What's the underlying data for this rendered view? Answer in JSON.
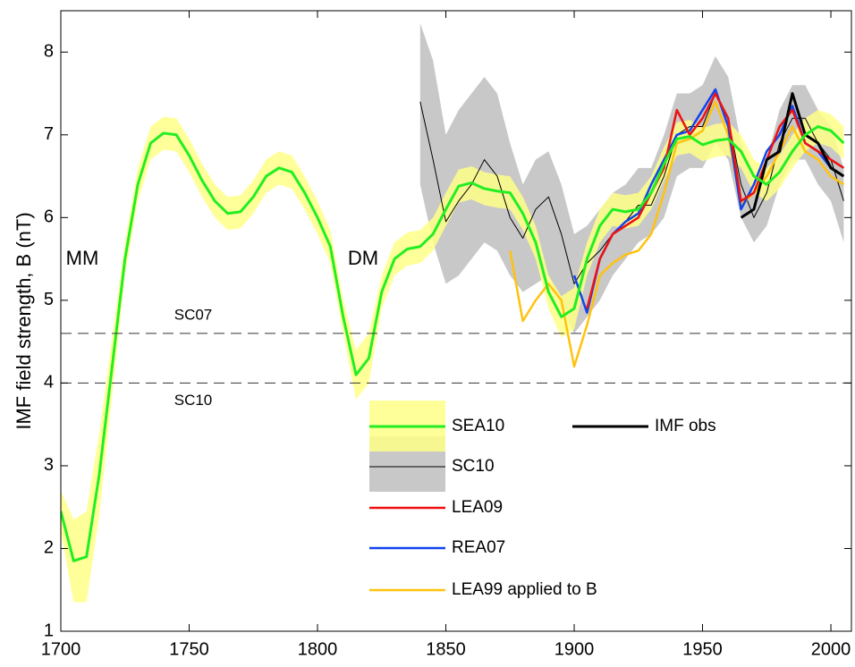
{
  "chart_data": {
    "type": "line",
    "ylabel": "IMF field strength, B (nT)",
    "xlim": [
      1700,
      2008
    ],
    "ylim": [
      1,
      8.5
    ],
    "xticks": [
      1700,
      1750,
      1800,
      1850,
      1900,
      1950,
      2000
    ],
    "yticks": [
      1,
      2,
      3,
      4,
      5,
      6,
      7,
      8
    ],
    "annotations": [
      "MM",
      "DM"
    ],
    "reference_lines": [
      {
        "value": 4.6,
        "label": "SC07"
      },
      {
        "value": 4.0,
        "label": "SC10"
      }
    ],
    "series": [
      {
        "name": "SEA10",
        "color": "#22ee22",
        "band_color": "#ffff88",
        "x": [
          1700,
          1705,
          1710,
          1715,
          1720,
          1725,
          1730,
          1735,
          1740,
          1745,
          1750,
          1755,
          1760,
          1765,
          1770,
          1775,
          1780,
          1785,
          1790,
          1795,
          1800,
          1805,
          1810,
          1815,
          1820,
          1825,
          1830,
          1835,
          1840,
          1845,
          1850,
          1855,
          1860,
          1865,
          1870,
          1875,
          1880,
          1885,
          1890,
          1895,
          1900,
          1905,
          1910,
          1915,
          1920,
          1925,
          1930,
          1935,
          1940,
          1945,
          1950,
          1955,
          1960,
          1965,
          1970,
          1975,
          1980,
          1985,
          1990,
          1995,
          2000,
          2005
        ],
        "values": [
          2.45,
          1.85,
          1.9,
          2.9,
          4.2,
          5.5,
          6.4,
          6.9,
          7.02,
          7.0,
          6.75,
          6.45,
          6.2,
          6.05,
          6.07,
          6.25,
          6.5,
          6.6,
          6.55,
          6.3,
          6.0,
          5.65,
          4.8,
          4.1,
          4.3,
          5.1,
          5.5,
          5.62,
          5.65,
          5.8,
          6.1,
          6.38,
          6.42,
          6.35,
          6.32,
          6.3,
          6.05,
          5.7,
          5.1,
          4.8,
          4.9,
          5.5,
          5.9,
          6.1,
          6.07,
          6.1,
          6.3,
          6.65,
          6.95,
          6.98,
          6.88,
          6.93,
          6.95,
          6.8,
          6.5,
          6.4,
          6.55,
          6.8,
          7.0,
          7.1,
          7.05,
          6.9
        ],
        "lower": [
          2.2,
          1.35,
          1.35,
          2.4,
          3.85,
          5.3,
          6.2,
          6.7,
          6.82,
          6.8,
          6.55,
          6.25,
          6.0,
          5.85,
          5.87,
          6.05,
          6.3,
          6.4,
          6.35,
          6.1,
          5.8,
          5.45,
          4.6,
          3.8,
          4.0,
          4.9,
          5.3,
          5.42,
          5.45,
          5.6,
          5.9,
          6.18,
          6.22,
          6.15,
          6.12,
          6.1,
          5.85,
          5.5,
          4.9,
          4.55,
          4.65,
          5.3,
          5.7,
          5.9,
          5.87,
          5.9,
          6.1,
          6.45,
          6.75,
          6.78,
          6.68,
          6.73,
          6.75,
          6.6,
          6.3,
          6.2,
          6.35,
          6.6,
          6.8,
          6.9,
          6.85,
          6.7
        ],
        "upper": [
          2.7,
          2.35,
          2.45,
          3.4,
          4.55,
          5.7,
          6.6,
          7.1,
          7.22,
          7.2,
          6.95,
          6.65,
          6.4,
          6.25,
          6.27,
          6.45,
          6.7,
          6.8,
          6.75,
          6.5,
          6.2,
          5.85,
          5.0,
          4.4,
          4.6,
          5.3,
          5.7,
          5.82,
          5.85,
          6.0,
          6.3,
          6.58,
          6.62,
          6.55,
          6.52,
          6.5,
          6.25,
          5.9,
          5.3,
          5.05,
          5.15,
          5.7,
          6.1,
          6.3,
          6.27,
          6.3,
          6.5,
          6.85,
          7.15,
          7.18,
          7.08,
          7.13,
          7.15,
          7.0,
          6.7,
          6.6,
          6.75,
          7.0,
          7.2,
          7.3,
          7.25,
          7.1
        ]
      },
      {
        "name": "SC10",
        "color": "#000000",
        "band_color": "#c8c8c8",
        "x": [
          1840,
          1845,
          1850,
          1855,
          1860,
          1865,
          1870,
          1875,
          1880,
          1885,
          1890,
          1895,
          1900,
          1905,
          1910,
          1915,
          1920,
          1925,
          1930,
          1935,
          1940,
          1945,
          1950,
          1955,
          1960,
          1965,
          1970,
          1975,
          1980,
          1985,
          1990,
          1995,
          2000,
          2005
        ],
        "values": [
          7.4,
          6.7,
          5.95,
          6.2,
          6.4,
          6.7,
          6.5,
          6.0,
          5.75,
          6.1,
          6.25,
          5.8,
          5.2,
          5.45,
          5.6,
          5.8,
          5.95,
          6.15,
          6.15,
          6.5,
          7.0,
          7.1,
          7.1,
          7.5,
          7.2,
          6.4,
          6.0,
          6.3,
          6.9,
          7.2,
          7.2,
          6.9,
          6.7,
          6.2
        ],
        "lower": [
          6.4,
          5.7,
          5.2,
          5.3,
          5.5,
          5.7,
          5.6,
          5.3,
          5.1,
          5.2,
          5.3,
          4.9,
          4.6,
          4.8,
          5.0,
          5.3,
          5.5,
          5.7,
          5.8,
          6.0,
          6.5,
          6.6,
          6.6,
          6.9,
          6.7,
          6.0,
          5.7,
          5.9,
          6.4,
          6.7,
          6.7,
          6.4,
          6.2,
          5.7
        ],
        "upper": [
          8.35,
          7.9,
          7.0,
          7.3,
          7.5,
          7.7,
          7.5,
          6.9,
          6.4,
          6.7,
          6.8,
          6.4,
          5.8,
          5.9,
          6.1,
          6.3,
          6.4,
          6.6,
          6.6,
          7.0,
          7.5,
          7.5,
          7.6,
          7.95,
          7.7,
          6.9,
          6.4,
          6.7,
          7.3,
          7.6,
          7.6,
          7.3,
          7.1,
          6.6
        ]
      },
      {
        "name": "LEA09",
        "color": "#ee1111",
        "x": [
          1905,
          1910,
          1915,
          1920,
          1925,
          1930,
          1935,
          1940,
          1945,
          1950,
          1955,
          1960,
          1965,
          1970,
          1975,
          1980,
          1985,
          1990,
          1995,
          2000,
          2005
        ],
        "values": [
          4.9,
          5.5,
          5.8,
          5.9,
          6.0,
          6.3,
          6.6,
          7.3,
          7.0,
          7.2,
          7.5,
          7.2,
          6.2,
          6.3,
          6.7,
          7.1,
          7.3,
          6.9,
          6.8,
          6.7,
          6.6
        ]
      },
      {
        "name": "REA07",
        "color": "#1144ee",
        "x": [
          1900,
          1905,
          1910,
          1915,
          1920,
          1925,
          1930,
          1935,
          1940,
          1945,
          1950,
          1955,
          1960,
          1965,
          1970,
          1975,
          1980,
          1985,
          1990,
          1995,
          2000
        ],
        "values": [
          5.3,
          4.85,
          5.5,
          5.8,
          5.95,
          6.05,
          6.4,
          6.7,
          7.0,
          7.05,
          7.3,
          7.55,
          7.1,
          6.1,
          6.4,
          6.8,
          7.0,
          7.35,
          6.9,
          6.8,
          6.6
        ]
      },
      {
        "name": "LEA99 applied to B",
        "color": "#ffc20e",
        "x": [
          1875,
          1880,
          1885,
          1890,
          1895,
          1900,
          1905,
          1910,
          1915,
          1920,
          1925,
          1930,
          1935,
          1940,
          1945,
          1950,
          1955,
          1960,
          1965,
          1970,
          1975,
          1980,
          1985,
          1990,
          1995,
          2000,
          2005
        ],
        "values": [
          5.6,
          4.75,
          5.0,
          5.2,
          5.0,
          4.2,
          4.7,
          5.3,
          5.45,
          5.55,
          5.6,
          5.8,
          6.3,
          6.9,
          6.95,
          7.05,
          7.4,
          7.0,
          6.15,
          6.3,
          6.5,
          6.8,
          7.1,
          6.8,
          6.7,
          6.5,
          6.4
        ]
      },
      {
        "name": "IMF obs",
        "color": "#000000",
        "x": [
          1965,
          1970,
          1975,
          1980,
          1985,
          1990,
          1995,
          2000,
          2005
        ],
        "values": [
          6.0,
          6.1,
          6.7,
          6.8,
          7.5,
          7.0,
          6.9,
          6.6,
          6.5
        ]
      }
    ]
  }
}
